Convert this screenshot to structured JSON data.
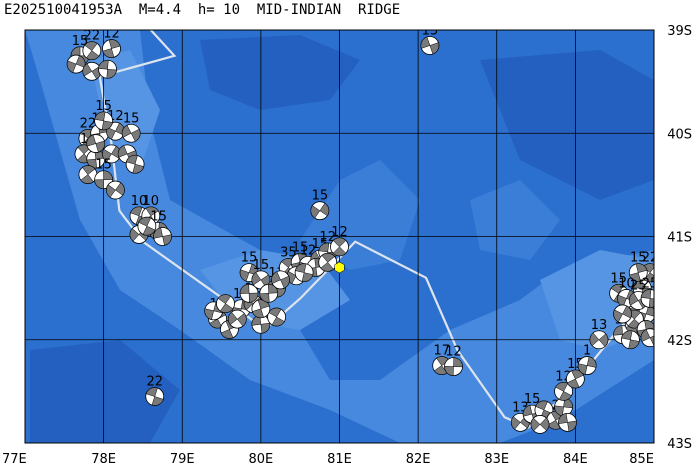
{
  "title": "E202510041953A  M=4.4  h= 10  MID-INDIAN  RIDGE",
  "map": {
    "lon_range": [
      77,
      85
    ],
    "lat_range": [
      -43,
      -39
    ],
    "lon_labels": [
      "77E",
      "78E",
      "79E",
      "80E",
      "81E",
      "82E",
      "83E",
      "84E",
      "85E"
    ],
    "lat_labels": [
      "39S",
      "40S",
      "41S",
      "42S",
      "43S"
    ],
    "ocean_color": "#2b70cf",
    "shallow_color": "#4a8ce0",
    "ridge_color": "#dde4ee",
    "grid": true,
    "epicenter": {
      "lon": 81.0,
      "lat": -41.3,
      "color": "#ffff00"
    }
  },
  "ridge_line": [
    [
      78.6,
      -39.0
    ],
    [
      78.9,
      -39.25
    ],
    [
      77.95,
      -39.45
    ],
    [
      78.1,
      -40.1
    ],
    [
      78.2,
      -40.75
    ],
    [
      78.5,
      -41.05
    ],
    [
      79.7,
      -41.7
    ],
    [
      80.05,
      -41.9
    ],
    [
      80.5,
      -41.6
    ],
    [
      81.2,
      -41.05
    ],
    [
      82.1,
      -41.4
    ],
    [
      82.5,
      -42.1
    ],
    [
      83.1,
      -42.75
    ],
    [
      83.4,
      -42.85
    ],
    [
      83.85,
      -42.55
    ],
    [
      84.55,
      -41.9
    ],
    [
      85.0,
      -41.55
    ]
  ],
  "mechanisms": [
    {
      "lon": 77.7,
      "lat": -39.25,
      "label": "15"
    },
    {
      "lon": 77.85,
      "lat": -39.2,
      "label": "22"
    },
    {
      "lon": 78.1,
      "lat": -39.18,
      "label": "12"
    },
    {
      "lon": 77.65,
      "lat": -39.33,
      "label": ""
    },
    {
      "lon": 77.85,
      "lat": -39.4,
      "label": ""
    },
    {
      "lon": 78.05,
      "lat": -39.38,
      "label": ""
    },
    {
      "lon": 77.8,
      "lat": -40.05,
      "label": "22"
    },
    {
      "lon": 77.95,
      "lat": -40.0,
      "label": "10"
    },
    {
      "lon": 78.15,
      "lat": -39.98,
      "label": "12"
    },
    {
      "lon": 78.35,
      "lat": -40.0,
      "label": "15"
    },
    {
      "lon": 78.0,
      "lat": -39.88,
      "label": "15"
    },
    {
      "lon": 77.75,
      "lat": -40.2,
      "label": "1"
    },
    {
      "lon": 77.9,
      "lat": -40.25,
      "label": ""
    },
    {
      "lon": 78.1,
      "lat": -40.2,
      "label": ""
    },
    {
      "lon": 78.3,
      "lat": -40.2,
      "label": ""
    },
    {
      "lon": 78.4,
      "lat": -40.3,
      "label": ""
    },
    {
      "lon": 77.8,
      "lat": -40.4,
      "label": ""
    },
    {
      "lon": 78.0,
      "lat": -40.45,
      "label": "15"
    },
    {
      "lon": 78.15,
      "lat": -40.55,
      "label": ""
    },
    {
      "lon": 77.9,
      "lat": -40.1,
      "label": ""
    },
    {
      "lon": 78.45,
      "lat": -40.8,
      "label": "10"
    },
    {
      "lon": 78.6,
      "lat": -40.8,
      "label": "10"
    },
    {
      "lon": 78.7,
      "lat": -40.95,
      "label": "15"
    },
    {
      "lon": 78.45,
      "lat": -40.98,
      "label": ""
    },
    {
      "lon": 78.75,
      "lat": -41.0,
      "label": ""
    },
    {
      "lon": 78.55,
      "lat": -40.9,
      "label": ""
    },
    {
      "lon": 79.45,
      "lat": -41.8,
      "label": "15"
    },
    {
      "lon": 79.75,
      "lat": -41.7,
      "label": "10"
    },
    {
      "lon": 79.9,
      "lat": -41.65,
      "label": "12"
    },
    {
      "lon": 80.0,
      "lat": -41.85,
      "label": "1"
    },
    {
      "lon": 80.2,
      "lat": -41.78,
      "label": ""
    },
    {
      "lon": 79.6,
      "lat": -41.9,
      "label": ""
    },
    {
      "lon": 79.4,
      "lat": -41.72,
      "label": ""
    },
    {
      "lon": 79.7,
      "lat": -41.8,
      "label": ""
    },
    {
      "lon": 79.85,
      "lat": -41.55,
      "label": ""
    },
    {
      "lon": 79.55,
      "lat": -41.65,
      "label": ""
    },
    {
      "lon": 80.0,
      "lat": -41.7,
      "label": ""
    },
    {
      "lon": 79.85,
      "lat": -41.35,
      "label": "15"
    },
    {
      "lon": 80.0,
      "lat": -41.42,
      "label": "15"
    },
    {
      "lon": 80.2,
      "lat": -41.5,
      "label": "12"
    },
    {
      "lon": 80.35,
      "lat": -41.3,
      "label": "35"
    },
    {
      "lon": 80.5,
      "lat": -41.25,
      "label": "15"
    },
    {
      "lon": 80.6,
      "lat": -41.28,
      "label": "12"
    },
    {
      "lon": 80.75,
      "lat": -41.22,
      "label": "15"
    },
    {
      "lon": 80.85,
      "lat": -41.15,
      "label": "12"
    },
    {
      "lon": 81.0,
      "lat": -41.1,
      "label": "12"
    },
    {
      "lon": 80.7,
      "lat": -41.3,
      "label": ""
    },
    {
      "lon": 80.45,
      "lat": -41.38,
      "label": ""
    },
    {
      "lon": 80.25,
      "lat": -41.42,
      "label": ""
    },
    {
      "lon": 80.55,
      "lat": -41.35,
      "label": ""
    },
    {
      "lon": 80.85,
      "lat": -41.25,
      "label": ""
    },
    {
      "lon": 80.1,
      "lat": -41.55,
      "label": ""
    },
    {
      "lon": 80.75,
      "lat": -40.75,
      "label": "15"
    },
    {
      "lon": 82.15,
      "lat": -39.15,
      "label": "13"
    },
    {
      "lon": 78.65,
      "lat": -42.55,
      "label": "22"
    },
    {
      "lon": 82.3,
      "lat": -42.25,
      "label": "17"
    },
    {
      "lon": 82.45,
      "lat": -42.26,
      "label": "12"
    },
    {
      "lon": 83.3,
      "lat": -42.8,
      "label": "13"
    },
    {
      "lon": 83.45,
      "lat": -42.72,
      "label": "15"
    },
    {
      "lon": 83.6,
      "lat": -42.68,
      "label": ""
    },
    {
      "lon": 83.75,
      "lat": -42.78,
      "label": "2"
    },
    {
      "lon": 83.85,
      "lat": -42.65,
      "label": "1"
    },
    {
      "lon": 83.55,
      "lat": -42.82,
      "label": ""
    },
    {
      "lon": 83.9,
      "lat": -42.8,
      "label": ""
    },
    {
      "lon": 83.85,
      "lat": -42.5,
      "label": "12"
    },
    {
      "lon": 84.0,
      "lat": -42.38,
      "label": "15"
    },
    {
      "lon": 84.15,
      "lat": -42.25,
      "label": "1"
    },
    {
      "lon": 84.3,
      "lat": -42.0,
      "label": "13"
    },
    {
      "lon": 84.6,
      "lat": -41.95,
      "label": "15"
    },
    {
      "lon": 84.55,
      "lat": -41.55,
      "label": "15"
    },
    {
      "lon": 84.75,
      "lat": -41.85,
      "label": "12"
    },
    {
      "lon": 84.9,
      "lat": -41.75,
      "label": "15"
    },
    {
      "lon": 84.7,
      "lat": -41.7,
      "label": ""
    },
    {
      "lon": 84.85,
      "lat": -41.5,
      "label": "15"
    },
    {
      "lon": 84.95,
      "lat": -41.35,
      "label": "22"
    },
    {
      "lon": 84.8,
      "lat": -41.35,
      "label": "15"
    },
    {
      "lon": 84.65,
      "lat": -41.6,
      "label": "10"
    },
    {
      "lon": 84.8,
      "lat": -41.62,
      "label": "25"
    },
    {
      "lon": 84.95,
      "lat": -41.6,
      "label": "25"
    },
    {
      "lon": 84.75,
      "lat": -41.8,
      "label": ""
    },
    {
      "lon": 84.9,
      "lat": -41.9,
      "label": ""
    },
    {
      "lon": 84.6,
      "lat": -41.75,
      "label": ""
    },
    {
      "lon": 84.95,
      "lat": -41.98,
      "label": ""
    },
    {
      "lon": 84.7,
      "lat": -42.0,
      "label": ""
    }
  ]
}
